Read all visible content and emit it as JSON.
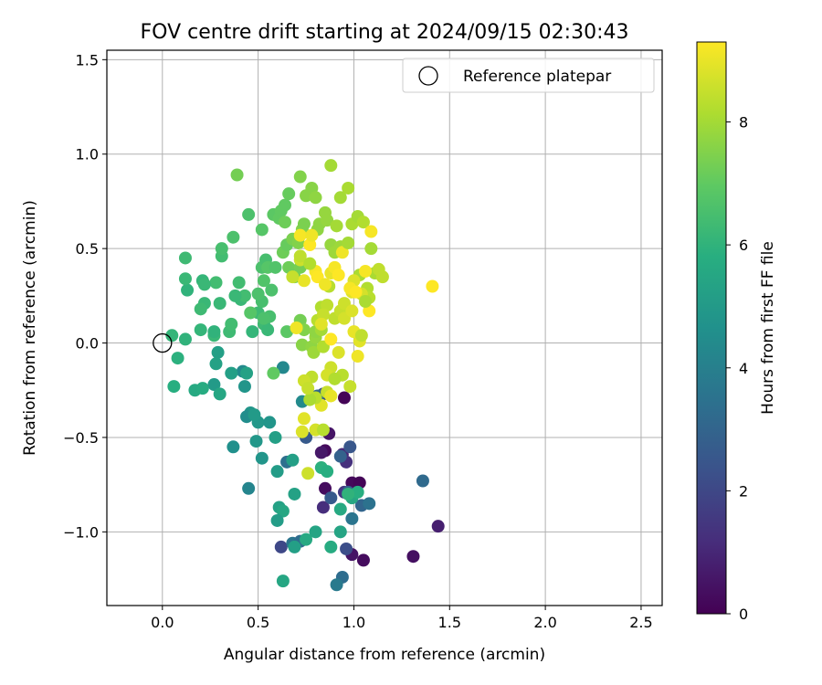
{
  "chart_data": {
    "type": "scatter",
    "title": "FOV centre drift starting at 2024/09/15 02:30:43",
    "xlabel": "Angular distance from reference (arcmin)",
    "ylabel": "Rotation from reference (arcmin)",
    "xlim": [
      -0.29,
      2.61
    ],
    "ylim": [
      -1.39,
      1.55
    ],
    "xticks": [
      0.0,
      0.5,
      1.0,
      1.5,
      2.0,
      2.5
    ],
    "xtick_labels": [
      "0.0",
      "0.5",
      "1.0",
      "1.5",
      "2.0",
      "2.5"
    ],
    "yticks": [
      -1.0,
      -0.5,
      0.0,
      0.5,
      1.0,
      1.5
    ],
    "ytick_labels": [
      "−1.0",
      "−0.5",
      "0.0",
      "0.5",
      "1.0",
      "1.5"
    ],
    "grid": true,
    "legend": {
      "position": "top-right",
      "entries": [
        "Reference platepar"
      ]
    },
    "reference_point": {
      "x": 0.0,
      "y": 0.0,
      "label": "Reference platepar"
    },
    "colorbar": {
      "label": "Hours from first FF file",
      "colormap": "viridis",
      "range": [
        0,
        9.3
      ],
      "ticks": [
        0,
        2,
        4,
        6,
        8
      ],
      "tick_labels": [
        "0",
        "2",
        "4",
        "6",
        "8"
      ]
    },
    "points": [
      [
        0.95,
        -0.29,
        0.1
      ],
      [
        0.99,
        -0.74,
        0.2
      ],
      [
        1.03,
        -0.74,
        0.1
      ],
      [
        1.05,
        -1.15,
        0.3
      ],
      [
        0.99,
        -1.12,
        0.5
      ],
      [
        1.31,
        -1.13,
        0.4
      ],
      [
        1.44,
        -0.97,
        0.8
      ],
      [
        0.94,
        -0.59,
        1.0
      ],
      [
        0.96,
        -0.63,
        1.3
      ],
      [
        0.87,
        -0.48,
        0.5
      ],
      [
        0.84,
        -0.87,
        1.2
      ],
      [
        0.85,
        -0.77,
        0.3
      ],
      [
        0.95,
        -0.79,
        1.5
      ],
      [
        0.85,
        -0.57,
        0.2
      ],
      [
        0.83,
        -0.58,
        0.6
      ],
      [
        0.62,
        -1.08,
        2.0
      ],
      [
        0.99,
        -0.81,
        1.8
      ],
      [
        0.96,
        -1.09,
        2.2
      ],
      [
        0.98,
        -0.55,
        2.5
      ],
      [
        0.93,
        -0.6,
        2.9
      ],
      [
        1.36,
        -0.73,
        3.2
      ],
      [
        0.88,
        -0.82,
        2.6
      ],
      [
        1.04,
        -0.86,
        3.0
      ],
      [
        0.97,
        -0.79,
        2.8
      ],
      [
        0.84,
        -0.27,
        2.3
      ],
      [
        0.75,
        -0.5,
        2.6
      ],
      [
        0.65,
        -0.63,
        3.4
      ],
      [
        0.68,
        -1.06,
        3.6
      ],
      [
        0.72,
        -1.05,
        3.3
      ],
      [
        0.94,
        -1.24,
        3.3
      ],
      [
        0.91,
        -1.28,
        3.8
      ],
      [
        0.99,
        -0.93,
        3.6
      ],
      [
        1.08,
        -0.85,
        3.5
      ],
      [
        0.81,
        -0.28,
        3.1
      ],
      [
        0.73,
        -0.31,
        4.4
      ],
      [
        0.45,
        -0.77,
        4.2
      ],
      [
        0.37,
        -0.55,
        4.6
      ],
      [
        0.42,
        -0.15,
        4.4
      ],
      [
        0.46,
        -0.37,
        4.8
      ],
      [
        0.5,
        -0.42,
        4.9
      ],
      [
        0.52,
        -0.61,
        4.8
      ],
      [
        0.56,
        -0.42,
        4.8
      ],
      [
        0.49,
        -0.52,
        4.9
      ],
      [
        0.59,
        -0.5,
        5.2
      ],
      [
        0.63,
        -0.13,
        4.3
      ],
      [
        0.6,
        -0.68,
        5.1
      ],
      [
        0.68,
        -0.62,
        5.2
      ],
      [
        0.69,
        -0.8,
        5.3
      ],
      [
        0.61,
        -0.87,
        5.3
      ],
      [
        0.63,
        -0.89,
        5.5
      ],
      [
        0.6,
        -0.94,
        5.1
      ],
      [
        0.69,
        -1.08,
        5.2
      ],
      [
        0.63,
        -1.26,
        5.5
      ],
      [
        0.75,
        -1.04,
        5.6
      ],
      [
        0.8,
        -1.0,
        5.4
      ],
      [
        0.88,
        -1.08,
        5.7
      ],
      [
        0.93,
        -1.0,
        5.4
      ],
      [
        0.93,
        -0.88,
        5.6
      ],
      [
        0.99,
        -0.82,
        5.5
      ],
      [
        1.02,
        -0.79,
        5.8
      ],
      [
        0.97,
        -0.8,
        6.0
      ],
      [
        0.83,
        -0.66,
        5.9
      ],
      [
        0.86,
        -0.68,
        5.8
      ],
      [
        0.36,
        -0.16,
        5.2
      ],
      [
        0.44,
        -0.16,
        5.3
      ],
      [
        0.43,
        -0.23,
        4.8
      ],
      [
        0.44,
        -0.39,
        4.5
      ],
      [
        0.48,
        -0.38,
        5.0
      ],
      [
        0.27,
        -0.22,
        5.0
      ],
      [
        0.3,
        -0.27,
        5.5
      ],
      [
        0.29,
        -0.05,
        5.2
      ],
      [
        0.28,
        -0.11,
        5.3
      ],
      [
        0.17,
        -0.25,
        5.6
      ],
      [
        0.21,
        -0.24,
        5.7
      ],
      [
        0.06,
        -0.23,
        5.8
      ],
      [
        0.08,
        -0.08,
        5.9
      ],
      [
        0.12,
        0.02,
        6.0
      ],
      [
        0.05,
        0.04,
        6.1
      ],
      [
        0.27,
        0.04,
        6.2
      ],
      [
        0.27,
        0.06,
        6.0
      ],
      [
        0.2,
        0.07,
        6.1
      ],
      [
        0.35,
        0.06,
        6.3
      ],
      [
        0.36,
        0.1,
        6.4
      ],
      [
        0.47,
        0.06,
        6.1
      ],
      [
        0.53,
        0.1,
        6.3
      ],
      [
        0.55,
        0.07,
        6.2
      ],
      [
        0.56,
        0.14,
        6.5
      ],
      [
        0.5,
        0.16,
        6.3
      ],
      [
        0.52,
        0.22,
        6.5
      ],
      [
        0.5,
        0.26,
        6.6
      ],
      [
        0.57,
        0.28,
        6.6
      ],
      [
        0.41,
        0.23,
        6.2
      ],
      [
        0.43,
        0.25,
        6.4
      ],
      [
        0.38,
        0.25,
        6.2
      ],
      [
        0.4,
        0.32,
        6.4
      ],
      [
        0.3,
        0.21,
        6.2
      ],
      [
        0.28,
        0.32,
        6.4
      ],
      [
        0.21,
        0.33,
        6.1
      ],
      [
        0.22,
        0.21,
        6.2
      ],
      [
        0.2,
        0.18,
        6.3
      ],
      [
        0.13,
        0.28,
        6.0
      ],
      [
        0.12,
        0.34,
        6.2
      ],
      [
        0.12,
        0.45,
        6.3
      ],
      [
        0.22,
        0.31,
        6.2
      ],
      [
        0.31,
        0.46,
        6.4
      ],
      [
        0.31,
        0.5,
        6.5
      ],
      [
        0.37,
        0.56,
        6.6
      ],
      [
        0.45,
        0.68,
        6.6
      ],
      [
        0.52,
        0.4,
        6.6
      ],
      [
        0.54,
        0.44,
        6.5
      ],
      [
        0.53,
        0.33,
        6.7
      ],
      [
        0.55,
        0.4,
        6.8
      ],
      [
        0.59,
        0.4,
        6.7
      ],
      [
        0.52,
        0.6,
        6.8
      ],
      [
        0.58,
        0.68,
        6.9
      ],
      [
        0.61,
        0.66,
        7.0
      ],
      [
        0.62,
        0.7,
        7.0
      ],
      [
        0.64,
        0.73,
        7.0
      ],
      [
        0.66,
        0.79,
        7.1
      ],
      [
        0.64,
        0.64,
        7.2
      ],
      [
        0.63,
        0.48,
        7.2
      ],
      [
        0.65,
        0.52,
        7.1
      ],
      [
        0.66,
        0.4,
        7.2
      ],
      [
        0.69,
        0.35,
        7.3
      ],
      [
        0.72,
        0.4,
        7.3
      ],
      [
        0.68,
        0.55,
        7.4
      ],
      [
        0.71,
        0.53,
        7.5
      ],
      [
        0.73,
        0.6,
        7.5
      ],
      [
        0.74,
        0.63,
        7.4
      ],
      [
        0.75,
        0.78,
        7.6
      ],
      [
        0.72,
        0.88,
        7.5
      ],
      [
        0.78,
        0.82,
        7.6
      ],
      [
        0.8,
        0.77,
        7.7
      ],
      [
        0.85,
        0.69,
        7.8
      ],
      [
        0.81,
        0.6,
        7.7
      ],
      [
        0.82,
        0.63,
        7.7
      ],
      [
        0.86,
        0.65,
        7.8
      ],
      [
        0.88,
        0.52,
        7.8
      ],
      [
        0.9,
        0.48,
        7.9
      ],
      [
        0.93,
        0.51,
        7.9
      ],
      [
        0.91,
        0.62,
        8.0
      ],
      [
        0.93,
        0.77,
        8.0
      ],
      [
        0.97,
        0.82,
        8.1
      ],
      [
        0.88,
        0.94,
        8.0
      ],
      [
        0.99,
        0.63,
        8.1
      ],
      [
        1.02,
        0.67,
        8.0
      ],
      [
        1.05,
        0.64,
        8.2
      ],
      [
        1.09,
        0.5,
        8.0
      ],
      [
        1.03,
        0.36,
        8.1
      ],
      [
        1.07,
        0.29,
        8.2
      ],
      [
        1.08,
        0.24,
        8.3
      ],
      [
        1.11,
        0.37,
        8.1
      ],
      [
        1.13,
        0.39,
        8.4
      ],
      [
        1.15,
        0.35,
        8.4
      ],
      [
        0.39,
        0.89,
        7.3
      ],
      [
        0.46,
        0.16,
        6.8
      ],
      [
        0.53,
        0.13,
        6.6
      ],
      [
        0.65,
        0.06,
        6.9
      ],
      [
        0.58,
        -0.16,
        7.0
      ],
      [
        0.72,
        0.12,
        7.3
      ],
      [
        0.74,
        0.07,
        7.5
      ],
      [
        0.73,
        -0.01,
        7.6
      ],
      [
        0.78,
        -0.02,
        7.7
      ],
      [
        0.8,
        0.03,
        7.8
      ],
      [
        0.8,
        0.06,
        7.7
      ],
      [
        0.79,
        -0.05,
        7.9
      ],
      [
        0.83,
        0.07,
        8.0
      ],
      [
        0.84,
        -0.02,
        8.2
      ],
      [
        0.81,
        0.12,
        8.3
      ],
      [
        0.83,
        0.19,
        8.2
      ],
      [
        0.86,
        0.2,
        8.4
      ],
      [
        0.87,
        0.3,
        8.3
      ],
      [
        0.84,
        0.15,
        8.5
      ],
      [
        0.9,
        0.13,
        8.4
      ],
      [
        0.93,
        0.17,
        8.5
      ],
      [
        0.95,
        0.21,
        8.6
      ],
      [
        0.95,
        0.13,
        8.7
      ],
      [
        0.99,
        0.27,
        8.9
      ],
      [
        1.0,
        0.33,
        8.8
      ],
      [
        1.04,
        0.26,
        8.7
      ],
      [
        1.0,
        0.06,
        9.0
      ],
      [
        1.03,
        0.01,
        8.9
      ],
      [
        0.99,
        0.17,
        8.8
      ],
      [
        1.02,
        -0.07,
        9.1
      ],
      [
        0.92,
        -0.05,
        8.8
      ],
      [
        0.88,
        -0.13,
        8.6
      ],
      [
        0.86,
        -0.17,
        8.7
      ],
      [
        0.86,
        -0.26,
        8.5
      ],
      [
        0.83,
        -0.33,
        8.9
      ],
      [
        0.8,
        -0.29,
        8.3
      ],
      [
        0.78,
        -0.18,
        8.4
      ],
      [
        0.77,
        -0.3,
        8.1
      ],
      [
        0.74,
        -0.2,
        8.6
      ],
      [
        0.76,
        -0.24,
        8.5
      ],
      [
        0.74,
        -0.4,
        8.9
      ],
      [
        0.73,
        -0.47,
        8.8
      ],
      [
        0.8,
        -0.46,
        8.7
      ],
      [
        0.84,
        -0.46,
        8.3
      ],
      [
        0.88,
        -0.28,
        9.0
      ],
      [
        0.76,
        -0.69,
        8.6
      ],
      [
        0.98,
        -0.23,
        8.5
      ],
      [
        0.7,
        0.08,
        9.1
      ],
      [
        0.74,
        0.33,
        9.0
      ],
      [
        0.72,
        0.57,
        9.2
      ],
      [
        0.77,
        0.52,
        9.3
      ],
      [
        0.78,
        0.57,
        9.1
      ],
      [
        0.8,
        0.38,
        9.2
      ],
      [
        0.81,
        0.35,
        9.3
      ],
      [
        0.85,
        0.31,
        9.1
      ],
      [
        0.88,
        0.37,
        9.0
      ],
      [
        0.9,
        0.4,
        9.2
      ],
      [
        0.92,
        0.36,
        9.3
      ],
      [
        0.94,
        0.48,
        9.1
      ],
      [
        0.98,
        0.29,
        9.2
      ],
      [
        1.01,
        0.27,
        9.3
      ],
      [
        1.06,
        0.38,
        9.2
      ],
      [
        1.09,
        0.59,
        9.2
      ],
      [
        1.08,
        0.17,
        9.3
      ],
      [
        1.41,
        0.3,
        9.3
      ],
      [
        0.83,
        0.1,
        8.9
      ],
      [
        0.88,
        0.02,
        9.3
      ],
      [
        0.72,
        0.44,
        8.6
      ],
      [
        0.72,
        0.46,
        8.4
      ],
      [
        0.77,
        0.42,
        8.2
      ],
      [
        0.97,
        0.53,
        8.0
      ],
      [
        1.04,
        0.04,
        8.4
      ],
      [
        1.06,
        0.22,
        8.1
      ],
      [
        0.94,
        -0.17,
        8.3
      ],
      [
        0.9,
        -0.19,
        8.2
      ],
      [
        0.68,
        0.35,
        8.5
      ]
    ]
  }
}
